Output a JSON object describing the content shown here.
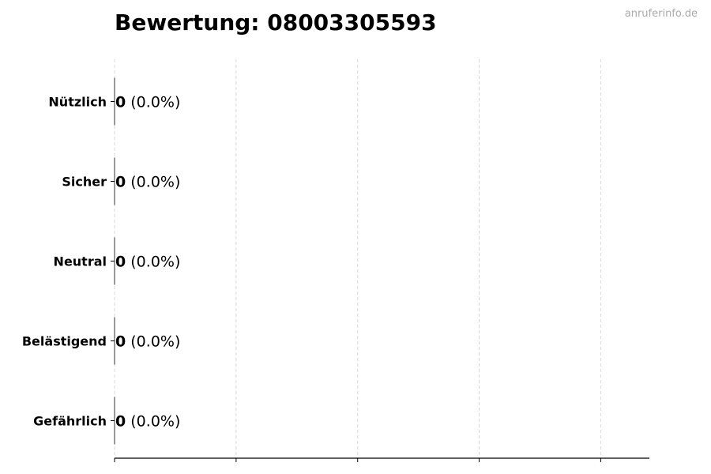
{
  "watermark": "anruferinfo.de",
  "chart_data": {
    "type": "bar",
    "orientation": "horizontal",
    "title": "Bewertung: 08003305593",
    "xlabel": "",
    "ylabel": "",
    "categories": [
      "Nützlich",
      "Sicher",
      "Neutral",
      "Belästigend",
      "Gefährlich"
    ],
    "values": [
      0,
      0,
      0,
      0,
      0
    ],
    "value_labels": [
      "0",
      "0",
      "0",
      "0",
      "0"
    ],
    "percent_labels": [
      "(0.0%)",
      "(0.0%)",
      "(0.0%)",
      "(0.0%)",
      "(0.0%)"
    ],
    "xlim": [
      0,
      4.4
    ],
    "xticks": [
      0,
      1,
      2,
      3,
      4
    ],
    "xtick_labels_shown": false,
    "grid": "x dashed",
    "legend": "none",
    "colors": {
      "grid": "#d9d9d9",
      "axis": "#000000",
      "bar_edge": "#333333"
    }
  }
}
